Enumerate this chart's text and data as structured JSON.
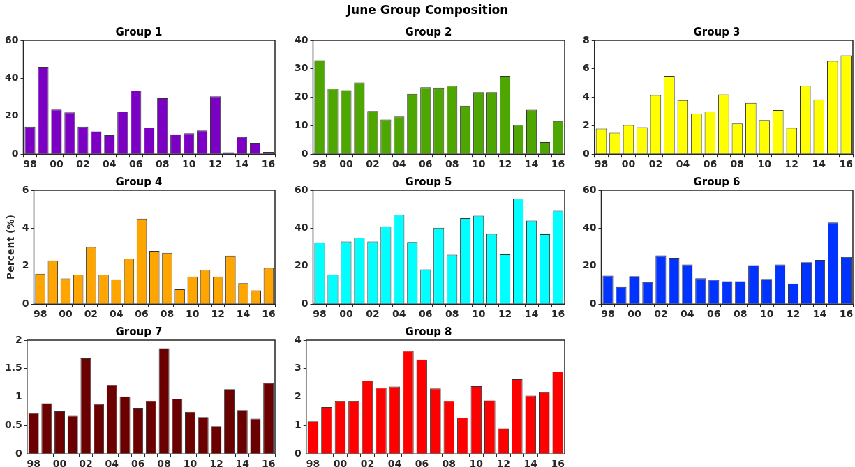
{
  "chart_data": [
    {
      "type": "other",
      "title": "June Group Composition"
    },
    {
      "type": "bar",
      "title": "Group 1",
      "categories": [
        "98",
        null,
        "00",
        null,
        "02",
        null,
        "04",
        null,
        "06",
        null,
        "08",
        null,
        "10",
        null,
        "12",
        null,
        "14",
        null,
        "16"
      ],
      "values": [
        14.5,
        46,
        23.5,
        22,
        14.5,
        12,
        10,
        22.5,
        33.5,
        14,
        29.5,
        10.5,
        11,
        12.5,
        30.5,
        1,
        9,
        6,
        1.2
      ],
      "color": "#7b00c4",
      "ylim": [
        0,
        60
      ],
      "yticks": [
        0,
        20,
        40,
        60
      ]
    },
    {
      "type": "bar",
      "title": "Group 2",
      "categories": [
        "98",
        null,
        "00",
        null,
        "02",
        null,
        "04",
        null,
        "06",
        null,
        "08",
        null,
        "10",
        null,
        "12",
        null,
        "14",
        null,
        "16"
      ],
      "values": [
        33,
        23,
        22.5,
        25.2,
        15.2,
        12.2,
        13.2,
        21.2,
        23.5,
        23.4,
        24,
        17,
        21.8,
        21.8,
        27.5,
        10.2,
        15.6,
        4.2,
        11.6
      ],
      "color": "#4ea600",
      "ylim": [
        0,
        40
      ],
      "yticks": [
        0,
        10,
        20,
        30,
        40
      ]
    },
    {
      "type": "bar",
      "title": "Group 3",
      "categories": [
        "98",
        null,
        "00",
        null,
        "02",
        null,
        "04",
        null,
        "06",
        null,
        "08",
        null,
        "10",
        null,
        "12",
        null,
        "14",
        null,
        "16"
      ],
      "values": [
        1.8,
        1.5,
        2.05,
        1.9,
        4.15,
        5.5,
        3.8,
        2.85,
        3.0,
        4.2,
        2.15,
        3.6,
        2.4,
        3.1,
        1.85,
        4.8,
        3.85,
        6.55,
        6.95
      ],
      "color": "#ffff00",
      "ylim": [
        0,
        8
      ],
      "yticks": [
        0,
        2,
        4,
        6,
        8
      ]
    },
    {
      "type": "bar",
      "title": "Group 4",
      "ylabel": "Percent (%)",
      "categories": [
        "98",
        null,
        "00",
        null,
        "02",
        null,
        "04",
        null,
        "06",
        null,
        "08",
        null,
        "10",
        null,
        "12",
        null,
        "14",
        null,
        "16"
      ],
      "values": [
        1.6,
        2.3,
        1.35,
        1.55,
        3.0,
        1.55,
        1.3,
        2.4,
        4.5,
        2.8,
        2.7,
        0.78,
        1.45,
        1.8,
        1.45,
        2.55,
        1.1,
        0.72,
        1.9
      ],
      "color": "#ffa500",
      "ylim": [
        0,
        6
      ],
      "yticks": [
        0,
        2,
        4,
        6
      ]
    },
    {
      "type": "bar",
      "title": "Group 5",
      "categories": [
        "98",
        null,
        "00",
        null,
        "02",
        null,
        "04",
        null,
        "06",
        null,
        "08",
        null,
        "10",
        null,
        "12",
        null,
        "14",
        null,
        "16"
      ],
      "values": [
        32.5,
        15.5,
        33,
        35,
        33,
        41,
        47,
        32.7,
        18.3,
        40.2,
        26,
        45.3,
        46.6,
        37,
        26.2,
        55.5,
        44,
        36.8,
        49.2
      ],
      "color": "#00ffff",
      "ylim": [
        0,
        60
      ],
      "yticks": [
        0,
        20,
        40,
        60
      ]
    },
    {
      "type": "bar",
      "title": "Group 6",
      "categories": [
        "98",
        null,
        "00",
        null,
        "02",
        null,
        "04",
        null,
        "06",
        null,
        "08",
        null,
        "10",
        null,
        "12",
        null,
        "14",
        null,
        "16"
      ],
      "values": [
        15,
        9,
        14.7,
        11.6,
        25.6,
        24.3,
        20.8,
        13.6,
        12.8,
        12,
        12,
        20.5,
        13.2,
        20.8,
        10.8,
        22,
        23.2,
        43,
        24.8
      ],
      "color": "#0033ff",
      "ylim": [
        0,
        60
      ],
      "yticks": [
        0,
        20,
        40,
        60
      ]
    },
    {
      "type": "bar",
      "title": "Group 7",
      "categories": [
        "98",
        null,
        "00",
        null,
        "02",
        null,
        "04",
        null,
        "06",
        null,
        "08",
        null,
        "10",
        null,
        "12",
        null,
        "14",
        null,
        "16"
      ],
      "values": [
        0.72,
        0.89,
        0.75,
        0.67,
        1.68,
        0.88,
        1.21,
        1.01,
        0.8,
        0.93,
        1.86,
        0.97,
        0.74,
        0.65,
        0.49,
        1.14,
        0.77,
        0.62,
        1.25
      ],
      "color": "#6b0000",
      "ylim": [
        0,
        2
      ],
      "yticks": [
        0,
        0.5,
        1,
        1.5,
        2
      ]
    },
    {
      "type": "bar",
      "title": "Group 8",
      "categories": [
        "98",
        null,
        "00",
        null,
        "02",
        null,
        "04",
        null,
        "06",
        null,
        "08",
        null,
        "10",
        null,
        "12",
        null,
        "14",
        null,
        "16"
      ],
      "values": [
        1.15,
        1.65,
        1.85,
        1.85,
        2.58,
        2.33,
        2.37,
        3.62,
        3.32,
        2.3,
        1.86,
        1.28,
        2.38,
        1.88,
        0.9,
        2.63,
        2.05,
        2.17,
        2.9
      ],
      "color": "#ff0000",
      "ylim": [
        0,
        4
      ],
      "yticks": [
        0,
        1,
        2,
        3,
        4
      ]
    }
  ]
}
